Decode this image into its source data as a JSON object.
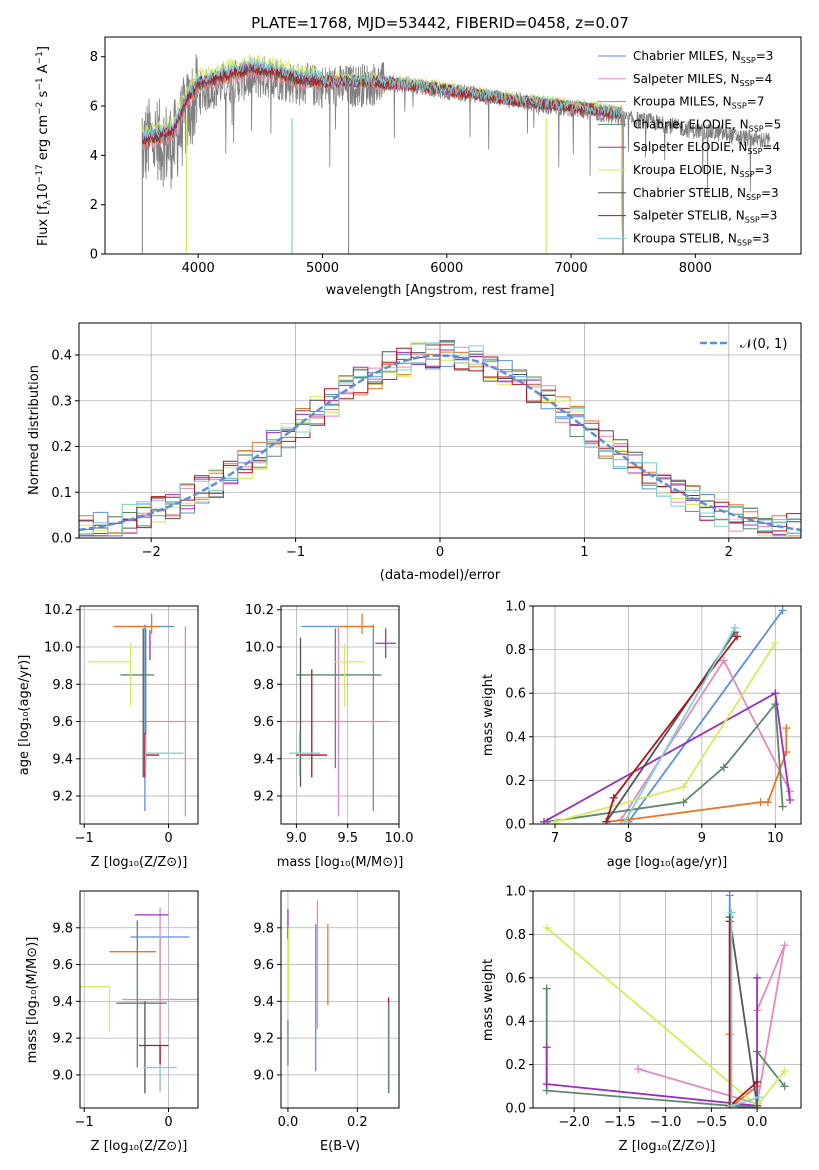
{
  "figure": {
    "title": "PLATE=1768, MJD=53442, FIBERID=0458, z=0.07"
  },
  "colors": {
    "chabrier_miles": "#5B8FD9",
    "salpeter_miles": "#E58AC0",
    "kroupa_miles": "#E8762A",
    "chabrier_elodie": "#5A8A6A",
    "salpeter_elodie": "#9B30B8",
    "kroupa_elodie": "#D6EB5A",
    "chabrier_stelib": "#555555",
    "salpeter_stelib": "#B0141C",
    "kroupa_stelib": "#7FD2D6",
    "data": "#7F7F7F",
    "gauss": "#5B8FD9",
    "grid": "#B0B0B0"
  },
  "panels": {
    "spectrum": {
      "xlabel": "wavelength [Angstrom, rest frame]",
      "ylabel_main": "Flux [f",
      "ylabel_sub": "λ",
      "ylabel_rest": "10",
      "ylabel_exp": "−17",
      "ylabel_units": " erg cm",
      "ylabel_exp2": "−2",
      "ylabel_units2": " s",
      "ylabel_exp3": "−1",
      "ylabel_units3": " A",
      "ylabel_exp4": "−1",
      "ylabel_close": "]",
      "legend_prefix": [
        "Chabrier MILES, N",
        "Salpeter MILES, N",
        "Kroupa MILES, N",
        "Chabrier ELODIE, N",
        "Salpeter ELODIE, N",
        "Kroupa ELODIE, N",
        "Chabrier STELIB, N",
        "Salpeter STELIB, N",
        "Kroupa STELIB, N"
      ],
      "legend_sub": "SSP",
      "legend_value": [
        "=3",
        "=4",
        "=7",
        "=5",
        "=4",
        "=3",
        "=3",
        "=3",
        "=3"
      ]
    },
    "histogram": {
      "xlabel": "(data-model)/error",
      "ylabel": "Normed distribution",
      "legend_label": "𝒩(0, 1)"
    },
    "age_vs_Z": {
      "xlabel": "Z [log₁₀(Z/Z⊙)]",
      "ylabel": "age  [log₁₀(age/yr)]"
    },
    "age_vs_mass": {
      "xlabel": "mass [log₁₀(M/M⊙)]"
    },
    "weight_vs_age": {
      "xlabel": "age  [log₁₀(age/yr)]",
      "ylabel": "mass weight"
    },
    "mass_vs_Z": {
      "xlabel": "Z [log₁₀(Z/Z⊙)]",
      "ylabel": "mass [log₁₀(M/M⊙)]"
    },
    "mass_vs_ebv": {
      "xlabel": "E(B-V)"
    },
    "weight_vs_Z": {
      "xlabel": "Z [log₁₀(Z/Z⊙)]",
      "ylabel": "mass weight"
    }
  },
  "chart_data": [
    {
      "type": "line",
      "title": "PLATE=1768, MJD=53442, FIBERID=0458, z=0.07",
      "xlabel": "wavelength [Angstrom, rest frame]",
      "ylabel": "Flux [fλ 10^-17 erg cm^-2 s^-1 A^-1]",
      "xlim": [
        3250,
        8850
      ],
      "ylim": [
        0,
        8.8
      ],
      "xticks": [
        4000,
        5000,
        6000,
        7000,
        8000
      ],
      "yticks": [
        0,
        2,
        4,
        6,
        8
      ],
      "legend_position": "top-right",
      "data_envelope": {
        "x": [
          3550,
          3600,
          3700,
          3800,
          3900,
          4000,
          4200,
          4400,
          4600,
          4800,
          5000,
          5200,
          5400,
          5600,
          5800,
          6000,
          6200,
          6400,
          6600,
          6800,
          7000,
          7200,
          7400,
          7600,
          7800,
          8000,
          8200,
          8400,
          8600
        ],
        "y": [
          4.2,
          4.6,
          4.5,
          4.4,
          5.6,
          6.5,
          6.9,
          7.1,
          7.2,
          6.9,
          6.8,
          6.8,
          6.9,
          6.9,
          6.8,
          6.6,
          6.5,
          6.3,
          6.2,
          6.0,
          5.9,
          5.7,
          5.5,
          5.4,
          5.2,
          5.0,
          4.9,
          4.7,
          4.6
        ]
      },
      "model_envelope": {
        "x": [
          3550,
          3700,
          3800,
          3900,
          4000,
          4200,
          4400,
          4600,
          4800,
          5000,
          5400,
          5800,
          6200,
          6600,
          7000,
          7400
        ],
        "y": [
          4.6,
          4.8,
          5.0,
          6.2,
          6.9,
          7.2,
          7.5,
          7.4,
          7.1,
          7.0,
          7.0,
          6.8,
          6.5,
          6.2,
          6.0,
          5.7
        ]
      },
      "series": [
        {
          "name": "Chabrier MILES, N_SSP=3"
        },
        {
          "name": "Salpeter MILES, N_SSP=4"
        },
        {
          "name": "Kroupa MILES, N_SSP=7"
        },
        {
          "name": "Chabrier ELODIE, N_SSP=5"
        },
        {
          "name": "Salpeter ELODIE, N_SSP=4"
        },
        {
          "name": "Kroupa ELODIE, N_SSP=3"
        },
        {
          "name": "Chabrier STELIB, N_SSP=3"
        },
        {
          "name": "Salpeter STELIB, N_SSP=3"
        },
        {
          "name": "Kroupa STELIB, N_SSP=3"
        }
      ]
    },
    {
      "type": "histogram",
      "xlabel": "(data-model)/error",
      "ylabel": "Normed distribution",
      "xlim": [
        -2.5,
        2.5
      ],
      "ylim": [
        0,
        0.47
      ],
      "xticks": [
        -2,
        -1,
        0,
        1,
        2
      ],
      "yticks": [
        0.0,
        0.1,
        0.2,
        0.3,
        0.4
      ],
      "grid": true,
      "legend_position": "top-right",
      "legend": "𝒩(0, 1)",
      "bin_width": 0.1
    },
    {
      "type": "scatter",
      "xlabel": "Z [log10(Z/Z⊙)]",
      "ylabel": "age  [log10(age/yr)]",
      "xlim": [
        -1.05,
        0.35
      ],
      "ylim": [
        9.05,
        10.22
      ],
      "xticks": [
        -1,
        0
      ],
      "yticks": [
        9.2,
        9.4,
        9.6,
        9.8,
        10.0,
        10.2
      ],
      "grid": true,
      "points": [
        {
          "series": "Chabrier MILES",
          "x": -0.28,
          "xerr": [
            0.35,
            0.35
          ],
          "y": 10.11,
          "yerr": [
            0.99,
            0.01
          ]
        },
        {
          "series": "Salpeter MILES",
          "x": 0.2,
          "xerr": [
            0.55,
            0.0
          ],
          "y": 9.6,
          "yerr": [
            0.51,
            0.51
          ]
        },
        {
          "series": "Kroupa MILES",
          "x": -0.2,
          "xerr": [
            0.45,
            0.1
          ],
          "y": 10.11,
          "yerr": [
            0.04,
            0.07
          ]
        },
        {
          "series": "Chabrier ELODIE",
          "x": -0.27,
          "xerr": [
            0.3,
            0.1
          ],
          "y": 9.85,
          "yerr": [
            0.5,
            0.25
          ]
        },
        {
          "series": "Salpeter ELODIE",
          "x": -0.22,
          "xerr": [
            0.0,
            0.0
          ],
          "y": 10.01,
          "yerr": [
            0.08,
            0.08
          ]
        },
        {
          "series": "Kroupa ELODIE",
          "x": -0.45,
          "xerr": [
            0.5,
            0.0
          ],
          "y": 9.92,
          "yerr": [
            0.24,
            0.1
          ]
        },
        {
          "series": "Chabrier STELIB",
          "x": -0.3,
          "xerr": [
            0.0,
            0.0
          ],
          "y": 9.7,
          "yerr": [
            0.4,
            0.4
          ]
        },
        {
          "series": "Salpeter STELIB",
          "x": -0.28,
          "xerr": [
            0.0,
            0.17
          ],
          "y": 9.42,
          "yerr": [
            0.12,
            0.12
          ]
        },
        {
          "series": "Kroupa STELIB",
          "x": -0.27,
          "xerr": [
            0.0,
            0.45
          ],
          "y": 9.43,
          "yerr": [
            0.1,
            0.1
          ]
        }
      ]
    },
    {
      "type": "scatter",
      "xlabel": "mass [log10(M/M⊙)]",
      "xlim": [
        8.85,
        10.0
      ],
      "ylim": [
        9.05,
        10.22
      ],
      "xticks": [
        9.0,
        9.5,
        10.0
      ],
      "yticks": [
        9.2,
        9.4,
        9.6,
        9.8,
        10.0,
        10.2
      ],
      "grid": true,
      "points": [
        {
          "series": "Chabrier MILES",
          "x": 9.75,
          "xerr": [
            0.7,
            0.0
          ],
          "y": 10.11,
          "yerr": [
            0.99,
            0.01
          ]
        },
        {
          "series": "Salpeter MILES",
          "x": 9.41,
          "xerr": [
            0.5,
            0.5
          ],
          "y": 9.6,
          "yerr": [
            0.51,
            0.51
          ]
        },
        {
          "series": "Kroupa MILES",
          "x": 9.64,
          "xerr": [
            0.22,
            0.12
          ],
          "y": 10.11,
          "yerr": [
            0.04,
            0.07
          ]
        },
        {
          "series": "Chabrier ELODIE",
          "x": 9.38,
          "xerr": [
            0.38,
            0.45
          ],
          "y": 9.85,
          "yerr": [
            0.5,
            0.25
          ]
        },
        {
          "series": "Salpeter ELODIE",
          "x": 9.87,
          "xerr": [
            0.1,
            0.1
          ],
          "y": 10.02,
          "yerr": [
            0.08,
            0.08
          ]
        },
        {
          "series": "Kroupa ELODIE",
          "x": 9.47,
          "xerr": [
            0.1,
            0.2
          ],
          "y": 9.92,
          "yerr": [
            0.24,
            0.1
          ]
        },
        {
          "series": "Chabrier STELIB",
          "x": 9.04,
          "xerr": [
            0.0,
            0.0
          ],
          "y": 9.65,
          "yerr": [
            0.4,
            0.4
          ]
        },
        {
          "series": "Salpeter STELIB",
          "x": 9.15,
          "xerr": [
            0.15,
            0.15
          ],
          "y": 9.42,
          "yerr": [
            0.12,
            0.46
          ]
        },
        {
          "series": "Kroupa STELIB",
          "x": 9.03,
          "xerr": [
            0.1,
            0.2
          ],
          "y": 9.43,
          "yerr": [
            0.12,
            0.12
          ]
        }
      ]
    },
    {
      "type": "line",
      "xlabel": "age  [log10(age/yr)]",
      "ylabel": "mass weight",
      "xlim": [
        6.7,
        10.35
      ],
      "ylim": [
        0,
        1.0
      ],
      "xticks": [
        7,
        8,
        9,
        10
      ],
      "yticks": [
        0.0,
        0.2,
        0.4,
        0.6,
        0.8,
        1.0
      ],
      "grid": true,
      "series": [
        {
          "name": "Chabrier MILES",
          "x": [
            8.0,
            10.1
          ],
          "y": [
            0.01,
            0.98
          ]
        },
        {
          "name": "Salpeter MILES",
          "x": [
            7.9,
            9.3,
            10.2
          ],
          "y": [
            0.02,
            0.75,
            0.15
          ]
        },
        {
          "name": "Kroupa MILES",
          "x": [
            7.7,
            8.0,
            9.8,
            9.9,
            10.15,
            10.15
          ],
          "y": [
            0.01,
            0.02,
            0.1,
            0.1,
            0.33,
            0.44
          ]
        },
        {
          "name": "Chabrier ELODIE",
          "x": [
            6.9,
            8.75,
            9.3,
            10.0,
            10.1
          ],
          "y": [
            0.01,
            0.1,
            0.26,
            0.55,
            0.08
          ]
        },
        {
          "name": "Salpeter ELODIE",
          "x": [
            6.85,
            10.0,
            10.2
          ],
          "y": [
            0.01,
            0.6,
            0.11
          ]
        },
        {
          "name": "Kroupa ELODIE",
          "x": [
            7.0,
            8.75,
            10.0
          ],
          "y": [
            0.01,
            0.17,
            0.83
          ]
        },
        {
          "name": "Chabrier STELIB",
          "x": [
            7.7,
            9.45
          ],
          "y": [
            0.01,
            0.88
          ]
        },
        {
          "name": "Salpeter STELIB",
          "x": [
            7.7,
            7.8,
            9.48
          ],
          "y": [
            0.01,
            0.12,
            0.86
          ]
        },
        {
          "name": "Kroupa STELIB",
          "x": [
            7.95,
            9.45
          ],
          "y": [
            0.01,
            0.9
          ]
        }
      ]
    },
    {
      "type": "scatter",
      "xlabel": "Z [log10(Z/Z⊙)]",
      "ylabel": "mass [log10(M/M⊙)]",
      "xlim": [
        -1.05,
        0.35
      ],
      "ylim": [
        8.82,
        10.0
      ],
      "xticks": [
        -1,
        0
      ],
      "yticks": [
        9.0,
        9.2,
        9.4,
        9.6,
        9.8
      ],
      "grid": true,
      "points": [
        {
          "series": "Chabrier MILES",
          "x": -0.1,
          "xerr": [
            0.35,
            0.35
          ],
          "y": 9.75,
          "yerr": [
            0.7,
            0.0
          ]
        },
        {
          "series": "Salpeter MILES",
          "x": -0.1,
          "xerr": [
            0.45,
            0.45
          ],
          "y": 9.41,
          "yerr": [
            0.5,
            0.5
          ]
        },
        {
          "series": "Kroupa MILES",
          "x": -0.25,
          "xerr": [
            0.45,
            0.1
          ],
          "y": 9.67,
          "yerr": [
            0.0,
            0.0
          ]
        },
        {
          "series": "Chabrier ELODIE",
          "x": -0.37,
          "xerr": [
            0.25,
            0.35
          ],
          "y": 9.39,
          "yerr": [
            0.35,
            0.45
          ]
        },
        {
          "series": "Salpeter ELODIE",
          "x": -0.2,
          "xerr": [
            0.2,
            0.2
          ],
          "y": 9.87,
          "yerr": [
            0.0,
            0.0
          ]
        },
        {
          "series": "Kroupa ELODIE",
          "x": -0.7,
          "xerr": [
            0.35,
            0.0
          ],
          "y": 9.48,
          "yerr": [
            0.25,
            0.0
          ]
        },
        {
          "series": "Chabrier STELIB",
          "x": -0.28,
          "xerr": [
            0.0,
            0.0
          ],
          "y": 9.4,
          "yerr": [
            0.5,
            0.0
          ]
        },
        {
          "series": "Salpeter STELIB",
          "x": -0.1,
          "xerr": [
            0.25,
            0.1
          ],
          "y": 9.16,
          "yerr": [
            0.1,
            0.0
          ]
        },
        {
          "series": "Kroupa STELIB",
          "x": -0.1,
          "xerr": [
            0.2,
            0.2
          ],
          "y": 9.04,
          "yerr": [
            0.1,
            0.0
          ]
        }
      ]
    },
    {
      "type": "scatter",
      "xlabel": "E(B-V)",
      "xlim": [
        -0.02,
        0.32
      ],
      "ylim": [
        8.82,
        10.0
      ],
      "xticks": [
        0.0,
        0.2
      ],
      "yticks": [
        9.0,
        9.2,
        9.4,
        9.6,
        9.8
      ],
      "grid": true,
      "points": [
        {
          "series": "Chabrier MILES",
          "x": 0.08,
          "y": 9.42,
          "yerr": [
            0.4,
            0.4
          ]
        },
        {
          "series": "Salpeter MILES",
          "x": 0.085,
          "y": 9.75,
          "yerr": [
            0.5,
            0.2
          ]
        },
        {
          "series": "Kroupa MILES",
          "x": 0.115,
          "y": 9.6,
          "yerr": [
            0.22,
            0.22
          ]
        },
        {
          "series": "Chabrier ELODIE",
          "x": 0.0,
          "y": 9.3,
          "yerr": [
            0.25,
            0.0
          ]
        },
        {
          "series": "Salpeter ELODIE",
          "x": 0.0,
          "y": 9.82,
          "yerr": [
            0.08,
            0.08
          ]
        },
        {
          "series": "Kroupa ELODIE",
          "x": 0.002,
          "y": 9.6,
          "yerr": [
            0.2,
            0.2
          ]
        },
        {
          "series": "Chabrier STELIB",
          "x": 0.29,
          "y": 9.15,
          "yerr": [
            0.25,
            0.25
          ]
        },
        {
          "series": "Salpeter STELIB",
          "x": 0.29,
          "y": 9.4,
          "yerr": [
            0.02,
            0.02
          ]
        },
        {
          "series": "Kroupa STELIB",
          "x": 0.292,
          "y": 9.15,
          "yerr": [
            0.25,
            0.25
          ]
        }
      ]
    },
    {
      "type": "line",
      "xlabel": "Z [log10(Z/Z⊙)]",
      "ylabel": "mass weight",
      "xlim": [
        -2.45,
        0.48
      ],
      "ylim": [
        0,
        1.0
      ],
      "xticks": [
        -2.0,
        -1.5,
        -1.0,
        -0.5,
        0.0
      ],
      "yticks": [
        0.0,
        0.2,
        0.4,
        0.6,
        0.8,
        1.0
      ],
      "grid": true,
      "series": [
        {
          "name": "Chabrier MILES",
          "x": [
            -0.3,
            -0.3,
            0.0
          ],
          "y": [
            0.98,
            0.01,
            0.01
          ]
        },
        {
          "name": "Salpeter MILES",
          "x": [
            -1.3,
            0.0,
            0.3,
            0.0
          ],
          "y": [
            0.18,
            0.02,
            0.75,
            0.45
          ]
        },
        {
          "name": "Kroupa MILES",
          "x": [
            -0.3,
            -0.3,
            0.0
          ],
          "y": [
            0.34,
            0.0,
            0.1
          ]
        },
        {
          "name": "Chabrier ELODIE",
          "x": [
            -2.3,
            -2.3,
            0.0,
            0.0,
            0.3
          ],
          "y": [
            0.55,
            0.08,
            0.0,
            0.26,
            0.1
          ]
        },
        {
          "name": "Salpeter ELODIE",
          "x": [
            -2.3,
            -2.3,
            0.0,
            0.0
          ],
          "y": [
            0.28,
            0.11,
            0.01,
            0.6
          ]
        },
        {
          "name": "Kroupa ELODIE",
          "x": [
            -2.3,
            0.0,
            0.3
          ],
          "y": [
            0.83,
            0.01,
            0.17
          ]
        },
        {
          "name": "Chabrier STELIB",
          "x": [
            -0.3,
            0.0
          ],
          "y": [
            0.88,
            0.01
          ]
        },
        {
          "name": "Salpeter STELIB",
          "x": [
            -0.3,
            -0.3,
            0.0
          ],
          "y": [
            0.86,
            0.01,
            0.12
          ]
        },
        {
          "name": "Kroupa STELIB",
          "x": [
            -0.28,
            -0.28,
            0.02
          ],
          "y": [
            0.9,
            0.01,
            0.05
          ]
        }
      ]
    }
  ]
}
